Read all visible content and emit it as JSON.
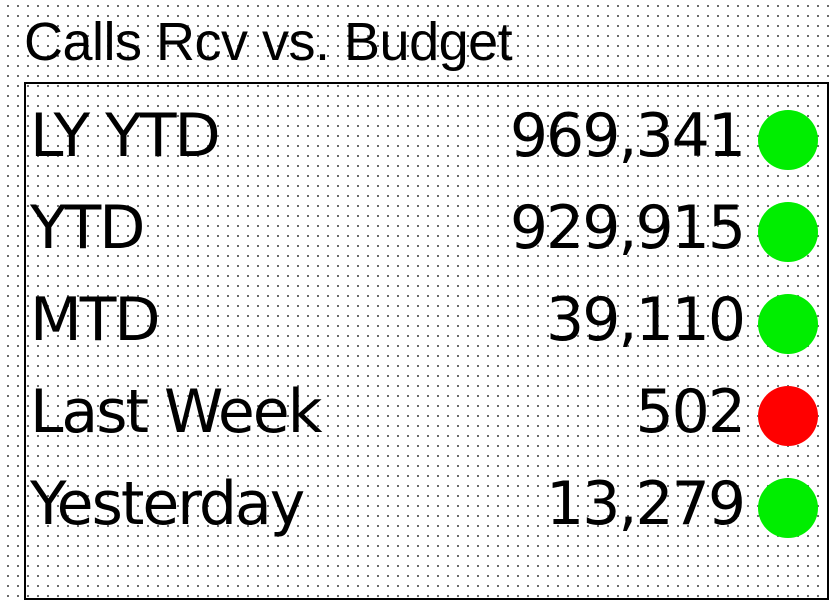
{
  "widget": {
    "title": "Calls Rcv vs. Budget"
  },
  "colors": {
    "good": "#00ee00",
    "bad": "#ff0000"
  },
  "rows": [
    {
      "label": "LY YTD",
      "value": "969,341",
      "status": "good",
      "status_icon": "green-status-dot"
    },
    {
      "label": "YTD",
      "value": "929,915",
      "status": "good",
      "status_icon": "green-status-dot"
    },
    {
      "label": "MTD",
      "value": "39,110",
      "status": "good",
      "status_icon": "green-status-dot"
    },
    {
      "label": "Last Week",
      "value": "502",
      "status": "bad",
      "status_icon": "red-status-dot"
    },
    {
      "label": "Yesterday",
      "value": "13,279",
      "status": "good",
      "status_icon": "green-status-dot"
    }
  ]
}
